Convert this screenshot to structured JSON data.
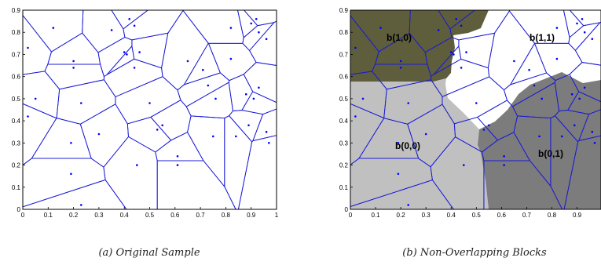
{
  "panels": [
    {
      "id": "a",
      "caption": "(a) Original Sample",
      "x_ticks": [
        "0",
        "0.1",
        "0.2",
        "0.3",
        "0.4",
        "0.5",
        "0.6",
        "0.7",
        "0.8",
        "0.9",
        "1"
      ],
      "y_ticks": [
        "0",
        "0.1",
        "0.2",
        "0.3",
        "0.4",
        "0.5",
        "0.6",
        "0.7",
        "0.8",
        "0.9"
      ]
    },
    {
      "id": "b",
      "caption": "(b) Non-Overlapping Blocks",
      "x_ticks": [
        "0",
        "0.1",
        "0.2",
        "0.3",
        "0.4",
        "0.5",
        "0.6",
        "0.7",
        "0.8",
        "0.9"
      ],
      "y_ticks": [
        "0",
        "0.1",
        "0.2",
        "0.3",
        "0.4",
        "0.5",
        "0.6",
        "0.7",
        "0.8",
        "0.9"
      ],
      "blocks": [
        {
          "label": "b(1,0)",
          "color": "#5e5e3c"
        },
        {
          "label": "b(1,1)",
          "color": "#ffffff"
        },
        {
          "label": "b(0,0)",
          "color": "#c0c0c0"
        },
        {
          "label": "b(0,1)",
          "color": "#7c7c7c"
        }
      ]
    }
  ],
  "chart_data": {
    "type": "scatter",
    "xlim": [
      0,
      1
    ],
    "ylim": [
      0,
      0.9
    ],
    "sites": [
      [
        0.02,
        0.73
      ],
      [
        0.12,
        0.82
      ],
      [
        0.2,
        0.67
      ],
      [
        0.2,
        0.64
      ],
      [
        0.05,
        0.5
      ],
      [
        0.02,
        0.42
      ],
      [
        0.23,
        0.48
      ],
      [
        0.3,
        0.34
      ],
      [
        0.19,
        0.3
      ],
      [
        0.19,
        0.16
      ],
      [
        0.23,
        0.02
      ],
      [
        0.35,
        0.81
      ],
      [
        0.42,
        0.86
      ],
      [
        0.44,
        0.83
      ],
      [
        0.4,
        0.71
      ],
      [
        0.41,
        0.7
      ],
      [
        0.46,
        0.71
      ],
      [
        0.44,
        0.64
      ],
      [
        0.5,
        0.48
      ],
      [
        0.55,
        0.38
      ],
      [
        0.53,
        0.36
      ],
      [
        0.45,
        0.2
      ],
      [
        0.61,
        0.24
      ],
      [
        0.61,
        0.2
      ],
      [
        0.65,
        0.67
      ],
      [
        0.71,
        0.63
      ],
      [
        0.73,
        0.56
      ],
      [
        0.76,
        0.5
      ],
      [
        0.82,
        0.68
      ],
      [
        0.82,
        0.82
      ],
      [
        0.9,
        0.84
      ],
      [
        0.92,
        0.86
      ],
      [
        0.93,
        0.8
      ],
      [
        0.96,
        0.77
      ],
      [
        0.91,
        0.5
      ],
      [
        0.93,
        0.55
      ],
      [
        0.88,
        0.52
      ],
      [
        0.96,
        0.35
      ],
      [
        0.89,
        0.38
      ],
      [
        0.84,
        0.33
      ],
      [
        0.75,
        0.33
      ],
      [
        0.97,
        0.3
      ]
    ]
  }
}
